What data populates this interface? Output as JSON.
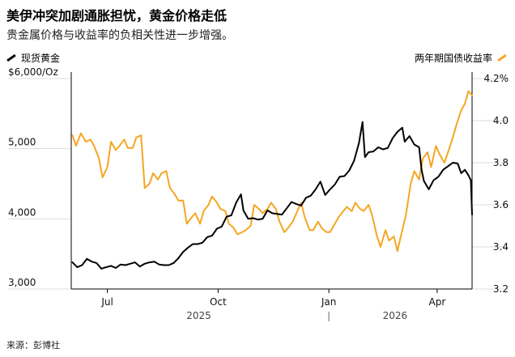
{
  "header": {
    "title": "美伊冲突加剧通胀担忧，黄金价格走低",
    "subtitle": "贵金属价格与收益率的负相关性进一步增强。"
  },
  "legend": {
    "left_label": "现货黄金",
    "right_label": "两年期国债收益率"
  },
  "source": "来源：彭博社",
  "colors": {
    "gold_line": "#000000",
    "yield_line": "#f5a623",
    "axis": "#000000",
    "grid": "#dddddd"
  },
  "chart_data": {
    "type": "line",
    "x_tick_labels": [
      "Jul",
      "Oct",
      "Jan",
      "Apr"
    ],
    "year_labels": [
      "2025",
      "2026"
    ],
    "left_axis": {
      "tick_labels": [
        "$6,000/Oz",
        "5,000",
        "4,000",
        "3,000"
      ],
      "ylim": [
        3000,
        6000
      ]
    },
    "right_axis": {
      "tick_labels": [
        "4.2%",
        "4.0",
        "3.8",
        "3.6",
        "3.4",
        "3.2"
      ],
      "ylim": [
        3.2,
        4.2
      ]
    },
    "x_range": [
      "2025-06-01",
      "2026-04-30"
    ],
    "series": [
      {
        "name": "现货黄金",
        "axis": "left",
        "points": [
          [
            "2025-06-02",
            3380
          ],
          [
            "2025-06-06",
            3310
          ],
          [
            "2025-06-10",
            3340
          ],
          [
            "2025-06-14",
            3430
          ],
          [
            "2025-06-18",
            3390
          ],
          [
            "2025-06-22",
            3370
          ],
          [
            "2025-06-26",
            3290
          ],
          [
            "2025-06-30",
            3310
          ],
          [
            "2025-07-04",
            3330
          ],
          [
            "2025-07-08",
            3300
          ],
          [
            "2025-07-12",
            3350
          ],
          [
            "2025-07-16",
            3340
          ],
          [
            "2025-07-20",
            3360
          ],
          [
            "2025-07-24",
            3380
          ],
          [
            "2025-07-28",
            3320
          ],
          [
            "2025-08-01",
            3360
          ],
          [
            "2025-08-05",
            3380
          ],
          [
            "2025-08-09",
            3390
          ],
          [
            "2025-08-13",
            3350
          ],
          [
            "2025-08-17",
            3340
          ],
          [
            "2025-08-21",
            3340
          ],
          [
            "2025-08-25",
            3370
          ],
          [
            "2025-08-29",
            3440
          ],
          [
            "2025-09-02",
            3530
          ],
          [
            "2025-09-06",
            3590
          ],
          [
            "2025-09-10",
            3640
          ],
          [
            "2025-09-14",
            3640
          ],
          [
            "2025-09-18",
            3660
          ],
          [
            "2025-09-22",
            3740
          ],
          [
            "2025-09-26",
            3760
          ],
          [
            "2025-09-30",
            3860
          ],
          [
            "2025-10-04",
            3890
          ],
          [
            "2025-10-08",
            4030
          ],
          [
            "2025-10-12",
            4050
          ],
          [
            "2025-10-16",
            4230
          ],
          [
            "2025-10-20",
            4350
          ],
          [
            "2025-10-22",
            4120
          ],
          [
            "2025-10-26",
            4000
          ],
          [
            "2025-10-30",
            4010
          ],
          [
            "2025-11-03",
            3990
          ],
          [
            "2025-11-07",
            4000
          ],
          [
            "2025-11-11",
            4120
          ],
          [
            "2025-11-15",
            4080
          ],
          [
            "2025-11-19",
            4070
          ],
          [
            "2025-11-23",
            4060
          ],
          [
            "2025-11-27",
            4150
          ],
          [
            "2025-12-01",
            4240
          ],
          [
            "2025-12-05",
            4210
          ],
          [
            "2025-12-09",
            4190
          ],
          [
            "2025-12-13",
            4300
          ],
          [
            "2025-12-17",
            4330
          ],
          [
            "2025-12-21",
            4420
          ],
          [
            "2025-12-25",
            4530
          ],
          [
            "2025-12-29",
            4340
          ],
          [
            "2026-01-02",
            4420
          ],
          [
            "2026-01-06",
            4490
          ],
          [
            "2026-01-10",
            4600
          ],
          [
            "2026-01-14",
            4610
          ],
          [
            "2026-01-18",
            4690
          ],
          [
            "2026-01-22",
            4830
          ],
          [
            "2026-01-26",
            5080
          ],
          [
            "2026-01-29",
            5380
          ],
          [
            "2026-01-31",
            4880
          ],
          [
            "2026-02-03",
            4950
          ],
          [
            "2026-02-07",
            4960
          ],
          [
            "2026-02-11",
            5020
          ],
          [
            "2026-02-15",
            4990
          ],
          [
            "2026-02-19",
            5010
          ],
          [
            "2026-02-23",
            5150
          ],
          [
            "2026-02-27",
            5240
          ],
          [
            "2026-03-03",
            5300
          ],
          [
            "2026-03-05",
            5100
          ],
          [
            "2026-03-09",
            5180
          ],
          [
            "2026-03-13",
            5060
          ],
          [
            "2026-03-17",
            5020
          ],
          [
            "2026-03-19",
            4700
          ],
          [
            "2026-03-21",
            4540
          ],
          [
            "2026-03-25",
            4420
          ],
          [
            "2026-03-29",
            4550
          ],
          [
            "2026-04-02",
            4600
          ],
          [
            "2026-04-06",
            4700
          ],
          [
            "2026-04-10",
            4750
          ],
          [
            "2026-04-14",
            4800
          ],
          [
            "2026-04-18",
            4790
          ],
          [
            "2026-04-21",
            4650
          ],
          [
            "2026-04-24",
            4700
          ],
          [
            "2026-04-27",
            4620
          ],
          [
            "2026-04-29",
            4550
          ],
          [
            "2026-04-30",
            4060
          ]
        ]
      },
      {
        "name": "两年期国债收益率",
        "axis": "right",
        "points": [
          [
            "2025-06-02",
            3.93
          ],
          [
            "2025-06-05",
            3.88
          ],
          [
            "2025-06-09",
            3.94
          ],
          [
            "2025-06-13",
            3.9
          ],
          [
            "2025-06-17",
            3.91
          ],
          [
            "2025-06-20",
            3.88
          ],
          [
            "2025-06-24",
            3.82
          ],
          [
            "2025-06-27",
            3.73
          ],
          [
            "2025-07-01",
            3.78
          ],
          [
            "2025-07-04",
            3.9
          ],
          [
            "2025-07-08",
            3.86
          ],
          [
            "2025-07-11",
            3.88
          ],
          [
            "2025-07-15",
            3.91
          ],
          [
            "2025-07-18",
            3.87
          ],
          [
            "2025-07-22",
            3.87
          ],
          [
            "2025-07-25",
            3.92
          ],
          [
            "2025-07-29",
            3.93
          ],
          [
            "2025-08-01",
            3.68
          ],
          [
            "2025-08-05",
            3.7
          ],
          [
            "2025-08-08",
            3.75
          ],
          [
            "2025-08-12",
            3.72
          ],
          [
            "2025-08-15",
            3.75
          ],
          [
            "2025-08-19",
            3.76
          ],
          [
            "2025-08-22",
            3.68
          ],
          [
            "2025-08-26",
            3.65
          ],
          [
            "2025-08-29",
            3.62
          ],
          [
            "2025-09-02",
            3.62
          ],
          [
            "2025-09-05",
            3.51
          ],
          [
            "2025-09-09",
            3.54
          ],
          [
            "2025-09-12",
            3.56
          ],
          [
            "2025-09-16",
            3.51
          ],
          [
            "2025-09-19",
            3.57
          ],
          [
            "2025-09-23",
            3.6
          ],
          [
            "2025-09-26",
            3.64
          ],
          [
            "2025-09-30",
            3.61
          ],
          [
            "2025-10-03",
            3.58
          ],
          [
            "2025-10-07",
            3.57
          ],
          [
            "2025-10-10",
            3.51
          ],
          [
            "2025-10-14",
            3.49
          ],
          [
            "2025-10-17",
            3.46
          ],
          [
            "2025-10-21",
            3.47
          ],
          [
            "2025-10-24",
            3.48
          ],
          [
            "2025-10-28",
            3.5
          ],
          [
            "2025-10-31",
            3.6
          ],
          [
            "2025-11-04",
            3.58
          ],
          [
            "2025-11-07",
            3.56
          ],
          [
            "2025-11-11",
            3.58
          ],
          [
            "2025-11-14",
            3.61
          ],
          [
            "2025-11-18",
            3.58
          ],
          [
            "2025-11-21",
            3.52
          ],
          [
            "2025-11-25",
            3.47
          ],
          [
            "2025-11-28",
            3.49
          ],
          [
            "2025-12-02",
            3.52
          ],
          [
            "2025-12-05",
            3.56
          ],
          [
            "2025-12-09",
            3.61
          ],
          [
            "2025-12-12",
            3.54
          ],
          [
            "2025-12-16",
            3.48
          ],
          [
            "2025-12-19",
            3.48
          ],
          [
            "2025-12-23",
            3.52
          ],
          [
            "2025-12-26",
            3.49
          ],
          [
            "2025-12-30",
            3.47
          ],
          [
            "2026-01-02",
            3.47
          ],
          [
            "2026-01-06",
            3.51
          ],
          [
            "2026-01-09",
            3.54
          ],
          [
            "2026-01-13",
            3.57
          ],
          [
            "2026-01-16",
            3.59
          ],
          [
            "2026-01-20",
            3.57
          ],
          [
            "2026-01-23",
            3.61
          ],
          [
            "2026-01-27",
            3.58
          ],
          [
            "2026-01-30",
            3.57
          ],
          [
            "2026-02-03",
            3.6
          ],
          [
            "2026-02-06",
            3.55
          ],
          [
            "2026-02-10",
            3.45
          ],
          [
            "2026-02-13",
            3.4
          ],
          [
            "2026-02-17",
            3.48
          ],
          [
            "2026-02-20",
            3.43
          ],
          [
            "2026-02-24",
            3.45
          ],
          [
            "2026-02-27",
            3.38
          ],
          [
            "2026-03-03",
            3.48
          ],
          [
            "2026-03-06",
            3.55
          ],
          [
            "2026-03-10",
            3.7
          ],
          [
            "2026-03-13",
            3.76
          ],
          [
            "2026-03-17",
            3.72
          ],
          [
            "2026-03-20",
            3.82
          ],
          [
            "2026-03-24",
            3.85
          ],
          [
            "2026-03-27",
            3.78
          ],
          [
            "2026-03-31",
            3.88
          ],
          [
            "2026-04-03",
            3.84
          ],
          [
            "2026-04-07",
            3.8
          ],
          [
            "2026-04-10",
            3.85
          ],
          [
            "2026-04-14",
            3.92
          ],
          [
            "2026-04-17",
            3.98
          ],
          [
            "2026-04-21",
            4.05
          ],
          [
            "2026-04-24",
            4.08
          ],
          [
            "2026-04-27",
            4.14
          ],
          [
            "2026-04-30",
            4.12
          ]
        ]
      }
    ]
  }
}
